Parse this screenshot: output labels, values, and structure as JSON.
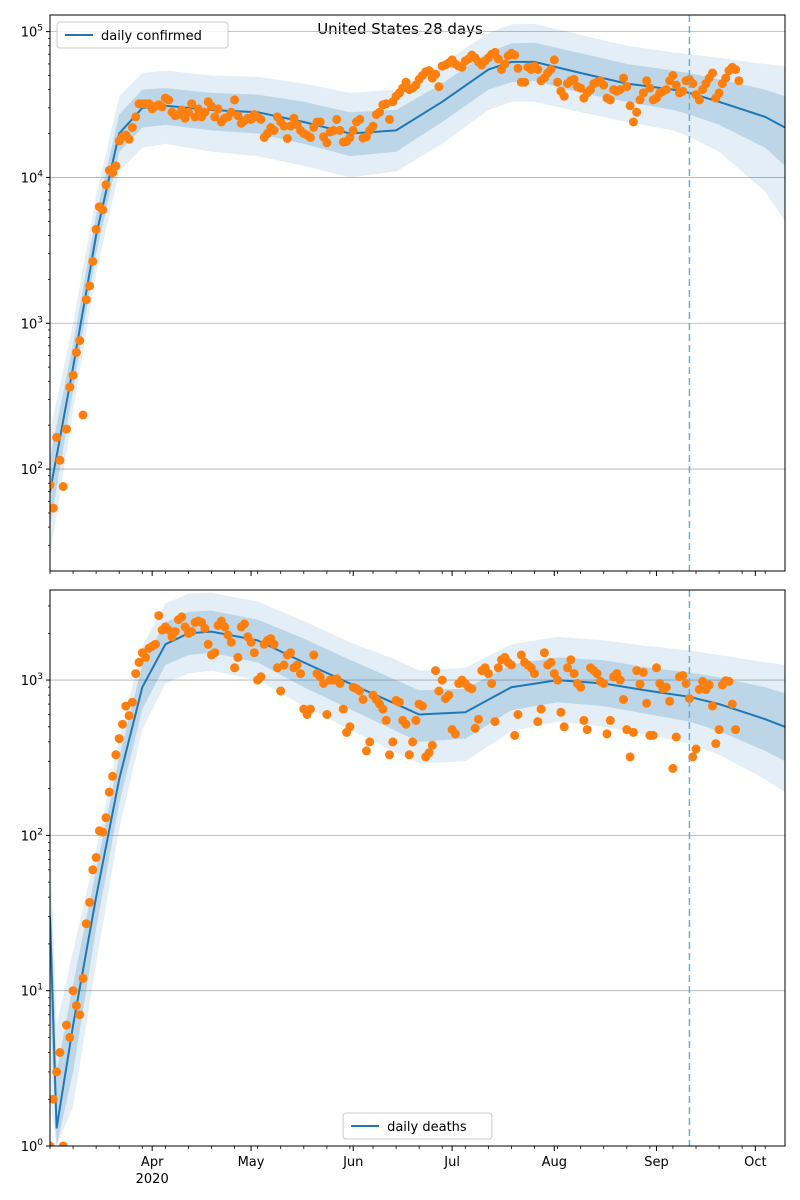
{
  "figure": {
    "title": "United States 28 days"
  },
  "colors": {
    "model_line": "#1f77b4",
    "band": "#1f77b4",
    "observed": "#ff7f0e",
    "grid": "#b0b0b0",
    "cutoff": "#6baed6"
  },
  "chart_data": [
    {
      "type": "line",
      "panel": "top",
      "scale": "log",
      "ylim": [
        20,
        130000
      ],
      "xlim": [
        "2020-03-01",
        "2020-10-10"
      ],
      "yticks": [
        100,
        1000,
        10000,
        100000
      ],
      "ytick_labels": [
        "10^2",
        "10^3",
        "10^4",
        "10^5"
      ],
      "xticks": [
        "Apr",
        "May",
        "Jun",
        "Jul",
        "Aug",
        "Sep",
        "Oct"
      ],
      "xtick_year_label": "2020",
      "grid": "y",
      "legend": {
        "position": "top-left",
        "entries": [
          "daily confirmed"
        ]
      },
      "forecast_start": "2020-09-11",
      "series": [
        {
          "name": "daily confirmed",
          "kind": "model-median",
          "x": [
            "2020-03-01",
            "2020-03-08",
            "2020-03-15",
            "2020-03-22",
            "2020-03-29",
            "2020-04-05",
            "2020-04-19",
            "2020-05-03",
            "2020-05-17",
            "2020-05-31",
            "2020-06-14",
            "2020-06-28",
            "2020-07-12",
            "2020-07-19",
            "2020-07-26",
            "2020-08-09",
            "2020-08-23",
            "2020-09-06",
            "2020-09-11",
            "2020-09-20",
            "2020-10-04",
            "2020-10-10"
          ],
          "y": [
            70,
            500,
            4000,
            20000,
            30000,
            31000,
            29000,
            28000,
            24000,
            20000,
            21000,
            33000,
            55000,
            62000,
            62000,
            52000,
            44000,
            40000,
            38000,
            33000,
            26000,
            22000
          ]
        }
      ],
      "bands": [
        {
          "level": "inner",
          "lower": [
            40,
            350,
            3000,
            15000,
            22000,
            23000,
            21000,
            20000,
            17000,
            14000,
            15000,
            24000,
            40000,
            45000,
            46000,
            38000,
            33000,
            29000,
            27000,
            23000,
            16000,
            12000
          ],
          "upper": [
            120,
            720,
            5500,
            27000,
            40000,
            41000,
            38000,
            37000,
            33000,
            28000,
            29000,
            44000,
            72000,
            83000,
            84000,
            71000,
            60000,
            54000,
            52000,
            47000,
            40000,
            36000
          ]
        },
        {
          "level": "outer",
          "lower": [
            25,
            250,
            2200,
            11000,
            16000,
            17000,
            15000,
            14000,
            12000,
            10000,
            11000,
            17000,
            29000,
            33000,
            33000,
            28000,
            24000,
            21000,
            19000,
            15000,
            8000,
            5000
          ],
          "upper": [
            180,
            1000,
            7500,
            36000,
            52000,
            54000,
            50000,
            49000,
            44000,
            38000,
            40000,
            60000,
            98000,
            112000,
            113000,
            95000,
            80000,
            72000,
            70000,
            66000,
            60000,
            58000
          ]
        }
      ],
      "observed": {
        "start": "2020-03-01",
        "step_days": 1,
        "values": [
          78,
          54,
          165,
          115,
          76,
          188,
          365,
          440,
          630,
          760,
          235,
          1450,
          1800,
          2650,
          4400,
          6300,
          6000,
          8900,
          11200,
          10800,
          12000,
          17800,
          19000,
          19500,
          18300,
          22000,
          26000,
          32000,
          32000,
          32000,
          32000,
          29500,
          30800,
          31500,
          30500,
          35000,
          34000,
          28000,
          26500,
          27000,
          29000,
          25500,
          28000,
          32000,
          26000,
          29500,
          26000,
          28000,
          33000,
          30800,
          26000,
          29500,
          24000,
          25500,
          26000,
          28000,
          34000,
          26500,
          23500,
          24500,
          25500,
          25000,
          27000,
          26000,
          25000,
          18800,
          20000,
          22000,
          21000,
          26000,
          24000,
          22500,
          18500,
          22500,
          25500,
          23000,
          21000,
          20000,
          19500,
          18800,
          22000,
          24000,
          24000,
          19000,
          17300,
          20500,
          21000,
          25000,
          21000,
          17500,
          17600,
          18800,
          21000,
          24000,
          25000,
          18600,
          19000,
          21000,
          22500,
          27000,
          28000,
          31500,
          32000,
          25000,
          33000,
          36000,
          38000,
          41000,
          45000,
          40000,
          41000,
          43000,
          47000,
          50000,
          53000,
          54000,
          48000,
          51000,
          42000,
          58000,
          59000,
          61000,
          64000,
          60000,
          58000,
          57000,
          63000,
          65000,
          69000,
          66000,
          62000,
          59000,
          63000,
          66000,
          70000,
          72000,
          65000,
          55000,
          60000,
          68000,
          71000,
          69000,
          56000,
          45000,
          45000,
          57000,
          55000,
          58000,
          55000,
          46000,
          48000,
          52000,
          55000,
          64000,
          45000,
          39000,
          36000,
          44000,
          46000,
          47000,
          42000,
          41000,
          35000,
          38000,
          40000,
          44000,
          45000,
          46000,
          43000,
          35000,
          34000,
          40000,
          39000,
          40000,
          48000,
          42000,
          31000,
          24000,
          28000,
          34000,
          38000,
          46000,
          41000,
          34000,
          35000,
          38000,
          39000,
          40000,
          46000,
          50000,
          43000,
          38000,
          39000,
          46000,
          47000,
          44000,
          37000,
          34000,
          40000,
          44000,
          48000,
          52000,
          35000,
          38000,
          44000,
          48000,
          54000,
          57000,
          55000,
          46000
        ]
      }
    },
    {
      "type": "line",
      "panel": "bottom",
      "scale": "log",
      "ylim": [
        1,
        3800
      ],
      "xlim": [
        "2020-03-01",
        "2020-10-10"
      ],
      "yticks": [
        1,
        10,
        100,
        1000
      ],
      "ytick_labels": [
        "10^0",
        "10^1",
        "10^2",
        "10^3"
      ],
      "xticks": [
        "Apr",
        "May",
        "Jun",
        "Jul",
        "Aug",
        "Sep",
        "Oct"
      ],
      "xtick_year_label": "2020",
      "grid": "y",
      "legend": {
        "position": "bottom-center",
        "entries": [
          "daily deaths"
        ]
      },
      "forecast_start": "2020-09-11",
      "series": [
        {
          "name": "daily deaths",
          "kind": "model-median",
          "x": [
            "2020-03-01",
            "2020-03-03",
            "2020-03-08",
            "2020-03-15",
            "2020-03-22",
            "2020-03-29",
            "2020-04-05",
            "2020-04-12",
            "2020-04-19",
            "2020-05-03",
            "2020-05-17",
            "2020-05-31",
            "2020-06-14",
            "2020-06-21",
            "2020-07-05",
            "2020-07-19",
            "2020-08-02",
            "2020-08-16",
            "2020-08-30",
            "2020-09-11",
            "2020-09-20",
            "2020-10-04",
            "2020-10-10"
          ],
          "y": [
            30,
            1.3,
            6,
            40,
            230,
            900,
            1700,
            2000,
            2050,
            1800,
            1300,
            950,
            700,
            600,
            620,
            900,
            1000,
            950,
            850,
            780,
            700,
            560,
            500
          ]
        }
      ],
      "bands": [
        {
          "level": "inner",
          "lower": [
            8,
            1,
            3,
            25,
            160,
            650,
            1250,
            1450,
            1500,
            1300,
            900,
            650,
            470,
            400,
            420,
            640,
            720,
            680,
            600,
            540,
            470,
            350,
            300
          ],
          "upper": [
            60,
            3,
            11,
            60,
            320,
            1250,
            2350,
            2750,
            2800,
            2450,
            1850,
            1350,
            1000,
            860,
            880,
            1260,
            1400,
            1340,
            1200,
            1120,
            1040,
            900,
            820
          ]
        },
        {
          "level": "outer",
          "lower": [
            2,
            1,
            1.8,
            15,
            110,
            480,
            950,
            1100,
            1150,
            1000,
            680,
            480,
            340,
            290,
            300,
            470,
            540,
            500,
            440,
            390,
            330,
            230,
            190
          ],
          "upper": [
            110,
            6,
            18,
            80,
            420,
            1650,
            3100,
            3600,
            3650,
            3200,
            2400,
            1750,
            1350,
            1150,
            1200,
            1700,
            1900,
            1800,
            1650,
            1550,
            1450,
            1300,
            1250
          ]
        }
      ],
      "observed": {
        "start": "2020-03-01",
        "step_days": 1,
        "values": [
          1,
          2,
          3,
          4,
          1,
          6,
          5,
          10,
          8,
          7,
          12,
          27,
          37,
          60,
          72,
          107,
          105,
          130,
          190,
          240,
          330,
          420,
          520,
          680,
          590,
          720,
          1100,
          1300,
          1500,
          1400,
          1600,
          1650,
          1700,
          2600,
          2100,
          2200,
          2100,
          1900,
          2050,
          2450,
          2550,
          2200,
          2000,
          2050,
          2350,
          2400,
          2350,
          2150,
          1700,
          1450,
          1500,
          2250,
          2400,
          2200,
          1950,
          1750,
          1200,
          1400,
          2200,
          2300,
          1900,
          1750,
          1500,
          1000,
          1050,
          1700,
          1800,
          1850,
          1700,
          1200,
          850,
          1250,
          1450,
          1500,
          1200,
          1250,
          1100,
          650,
          600,
          650,
          1450,
          1100,
          1050,
          950,
          600,
          1000,
          1000,
          1020,
          950,
          650,
          460,
          500,
          900,
          880,
          850,
          750,
          350,
          400,
          800,
          750,
          700,
          650,
          550,
          330,
          400,
          740,
          720,
          550,
          520,
          330,
          400,
          550,
          700,
          680,
          320,
          340,
          380,
          1150,
          850,
          1000,
          760,
          800,
          480,
          450,
          950,
          1000,
          950,
          900,
          880,
          490,
          560,
          1150,
          1200,
          1100,
          950,
          540,
          1200,
          1350,
          1400,
          1300,
          1250,
          440,
          600,
          1450,
          1300,
          1250,
          1200,
          1100,
          540,
          650,
          1500,
          1250,
          1300,
          1100,
          1000,
          620,
          500,
          1200,
          1350,
          1100,
          950,
          900,
          550,
          480,
          1200,
          1150,
          1100,
          980,
          950,
          450,
          550,
          1050,
          1100,
          1000,
          750,
          480,
          320,
          460,
          1150,
          940,
          1120,
          710,
          440,
          440,
          1200,
          950,
          880,
          900,
          730,
          270,
          430,
          1050,
          1070,
          950,
          760,
          320,
          360,
          870,
          980,
          870,
          930,
          680,
          390,
          480,
          930,
          990,
          980,
          700,
          480
        ]
      }
    }
  ]
}
